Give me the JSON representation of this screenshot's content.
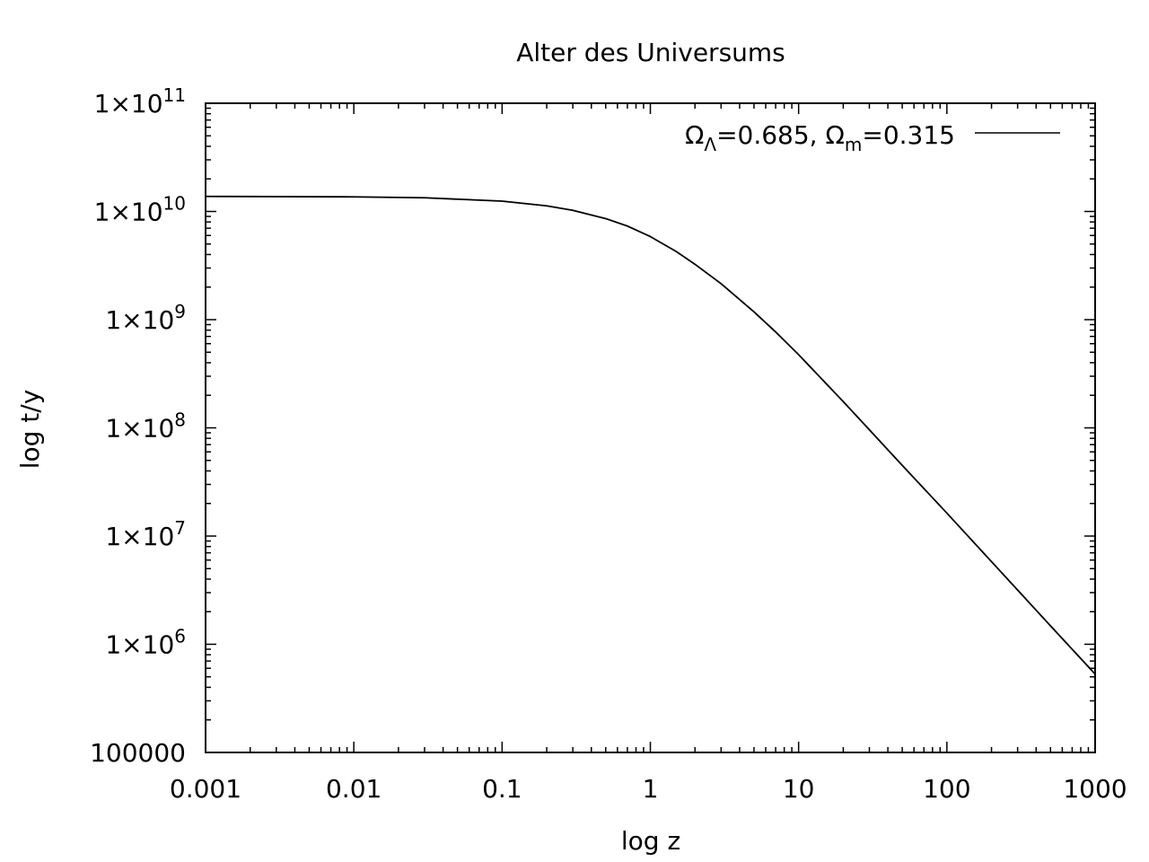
{
  "chart_data": {
    "type": "line",
    "title": "Alter des Universums",
    "xlabel": "log z",
    "ylabel": "log t/y",
    "x_scale": "log",
    "y_scale": "log",
    "xlim": [
      0.001,
      1000
    ],
    "ylim": [
      100000,
      100000000000
    ],
    "x_ticks": [
      {
        "value": 0.001,
        "label": "0.001"
      },
      {
        "value": 0.01,
        "label": "0.01"
      },
      {
        "value": 0.1,
        "label": "0.1"
      },
      {
        "value": 1,
        "label": "1"
      },
      {
        "value": 10,
        "label": "10"
      },
      {
        "value": 100,
        "label": "100"
      },
      {
        "value": 1000,
        "label": "1000"
      }
    ],
    "y_ticks": [
      {
        "value": 100000,
        "label": "100000",
        "mantissa": "",
        "exponent": ""
      },
      {
        "value": 1000000,
        "label": "1×10^6",
        "mantissa": "1×10",
        "exponent": "6"
      },
      {
        "value": 10000000,
        "label": "1×10^7",
        "mantissa": "1×10",
        "exponent": "7"
      },
      {
        "value": 100000000,
        "label": "1×10^8",
        "mantissa": "1×10",
        "exponent": "8"
      },
      {
        "value": 1000000000,
        "label": "1×10^9",
        "mantissa": "1×10",
        "exponent": "9"
      },
      {
        "value": 10000000000,
        "label": "1×10^10",
        "mantissa": "1×10",
        "exponent": "10"
      },
      {
        "value": 100000000000,
        "label": "1×10^11",
        "mantissa": "1×10",
        "exponent": "11"
      }
    ],
    "grid": false,
    "legend_position": "top-right",
    "legend": {
      "omega_symbol": "Ω",
      "lambda_subscript": "Λ",
      "lambda_value": "=0.685, ",
      "matter_subscript": "m",
      "matter_value": "=0.315"
    },
    "series": [
      {
        "name": "ΩΛ=0.685, Ωm=0.315",
        "color": "#000000",
        "x": [
          0.001,
          0.01,
          0.03,
          0.1,
          0.2,
          0.3,
          0.5,
          0.7,
          1,
          1.5,
          2,
          3,
          5,
          7,
          10,
          20,
          30,
          50,
          100,
          200,
          300,
          500,
          1000
        ],
        "y": [
          13780000000,
          13650000000,
          13390000000,
          12460000000,
          11270000000,
          10240000000,
          8590000000,
          7330000000,
          5860000000,
          4250000000,
          3250000000,
          2150000000,
          1180000000,
          770000000,
          475000000,
          175000000,
          96000000,
          45000000,
          16300000,
          5800000,
          3170000,
          1480000,
          530000
        ]
      }
    ]
  }
}
